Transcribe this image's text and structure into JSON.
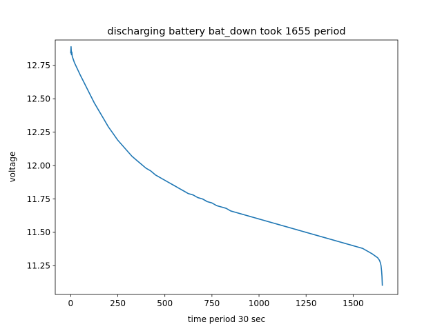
{
  "chart_data": {
    "type": "line",
    "title": "discharging battery bat_down took 1655 period",
    "xlabel": "time period 30 sec",
    "ylabel": "voltage",
    "xlim": [
      -82,
      1737
    ],
    "ylim": [
      11.035,
      12.94
    ],
    "xticks": [
      0,
      250,
      500,
      750,
      1000,
      1250,
      1500
    ],
    "yticks": [
      11.25,
      11.5,
      11.75,
      12.0,
      12.25,
      12.5,
      12.75
    ],
    "grid": false,
    "legend": "none",
    "line_color": "#1f77b4",
    "series": [
      {
        "x": [
          0,
          2,
          4,
          6,
          8,
          10,
          15,
          20,
          30,
          40,
          50,
          75,
          100,
          125,
          150,
          175,
          200,
          225,
          250,
          275,
          300,
          325,
          350,
          375,
          400,
          425,
          450,
          475,
          500,
          525,
          550,
          575,
          600,
          625,
          650,
          675,
          700,
          725,
          750,
          775,
          800,
          825,
          850,
          875,
          900,
          925,
          950,
          975,
          1000,
          1025,
          1050,
          1075,
          1100,
          1125,
          1150,
          1175,
          1200,
          1225,
          1250,
          1275,
          1300,
          1325,
          1350,
          1375,
          1400,
          1425,
          1450,
          1475,
          1500,
          1525,
          1550,
          1575,
          1600,
          1610,
          1620,
          1630,
          1635,
          1640,
          1645,
          1648,
          1651,
          1653,
          1655
        ],
        "y": [
          12.84,
          12.89,
          12.83,
          12.85,
          12.82,
          12.81,
          12.79,
          12.77,
          12.74,
          12.71,
          12.68,
          12.61,
          12.54,
          12.47,
          12.41,
          12.35,
          12.29,
          12.24,
          12.19,
          12.15,
          12.11,
          12.07,
          12.04,
          12.01,
          11.98,
          11.96,
          11.93,
          11.91,
          11.89,
          11.87,
          11.85,
          11.83,
          11.81,
          11.79,
          11.78,
          11.76,
          11.75,
          11.73,
          11.72,
          11.7,
          11.69,
          11.68,
          11.66,
          11.65,
          11.64,
          11.63,
          11.62,
          11.61,
          11.6,
          11.59,
          11.58,
          11.57,
          11.56,
          11.55,
          11.54,
          11.53,
          11.52,
          11.51,
          11.5,
          11.49,
          11.48,
          11.47,
          11.46,
          11.45,
          11.44,
          11.43,
          11.42,
          11.41,
          11.4,
          11.39,
          11.38,
          11.36,
          11.34,
          11.33,
          11.32,
          11.31,
          11.3,
          11.29,
          11.27,
          11.25,
          11.21,
          11.17,
          11.1
        ]
      }
    ]
  }
}
